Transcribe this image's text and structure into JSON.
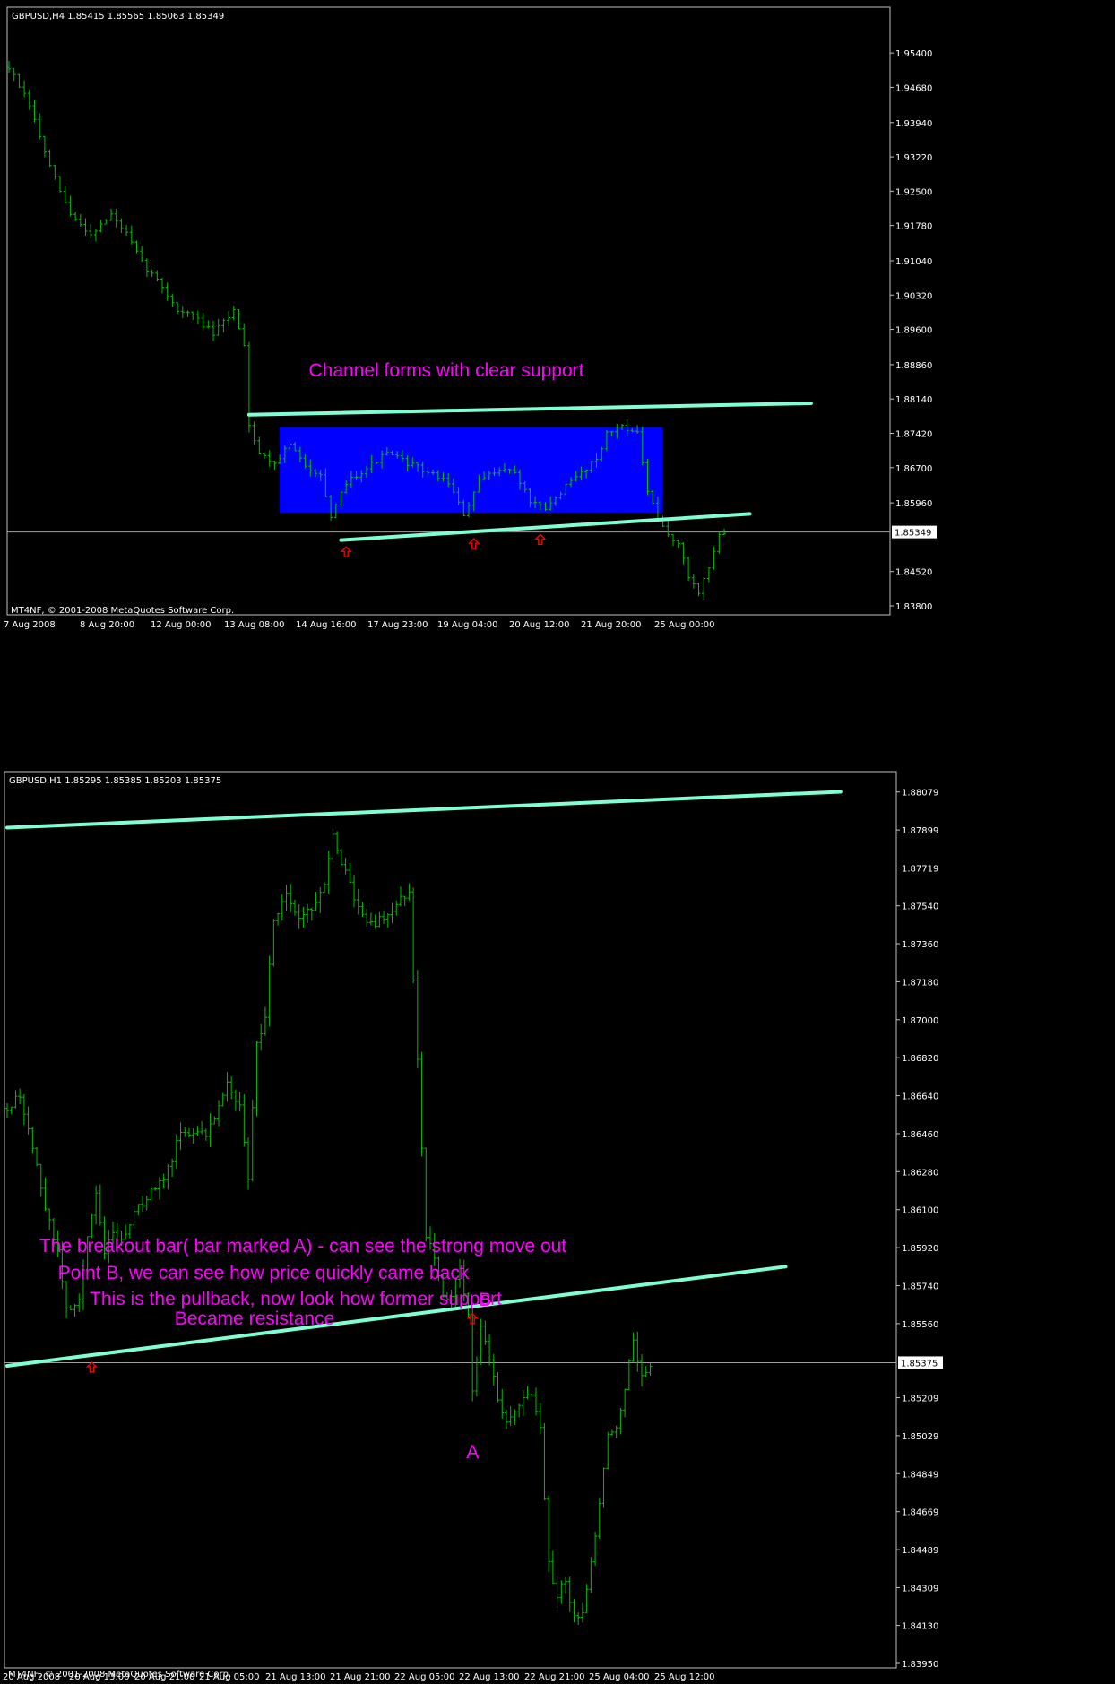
{
  "colors": {
    "background": "#000000",
    "frame": "#c0c0c0",
    "bars": "#00c000",
    "trendline": "#7fffd4",
    "channel_fill": "#0000ff",
    "annotation": "#ff00ff",
    "arrow": "#ff0000",
    "current_price_line": "#a0a0a0"
  },
  "chart_data": [
    {
      "type": "ohlc",
      "header": "GBPUSD,H4  1.85415 1.85565 1.85063 1.85349",
      "symbol": "GBPUSD",
      "timeframe": "H4",
      "copyright": "MT4NF, © 2001-2008 MetaQuotes Software Corp.",
      "y_ticks": [
        "1.95400",
        "1.94680",
        "1.93940",
        "1.93220",
        "1.92500",
        "1.91780",
        "1.91040",
        "1.90320",
        "1.89600",
        "1.88860",
        "1.88140",
        "1.87420",
        "1.86700",
        "1.85960",
        "1.84520",
        "1.83800"
      ],
      "y_tick_values": [
        1.954,
        1.9468,
        1.9394,
        1.9322,
        1.925,
        1.9178,
        1.9104,
        1.9032,
        1.896,
        1.8886,
        1.8814,
        1.8742,
        1.867,
        1.8596,
        1.8452,
        1.838
      ],
      "ylim": [
        1.838,
        1.9576
      ],
      "current_price_label": "1.85349",
      "current_price": 1.85349,
      "x_ticks": [
        "7 Aug 2008",
        "8 Aug 20:00",
        "12 Aug 00:00",
        "13 Aug 08:00",
        "14 Aug 16:00",
        "17 Aug 23:00",
        "19 Aug 04:00",
        "20 Aug 12:00",
        "21 Aug 20:00",
        "25 Aug 00:00"
      ],
      "annotations": [
        "Channel forms with clear support"
      ],
      "close_path": [
        {
          "i": 0,
          "p": 1.951
        },
        {
          "i": 4,
          "p": 1.943
        },
        {
          "i": 8,
          "p": 1.93
        },
        {
          "i": 12,
          "p": 1.92
        },
        {
          "i": 16,
          "p": 1.916
        },
        {
          "i": 20,
          "p": 1.92
        },
        {
          "i": 23,
          "p": 1.916
        },
        {
          "i": 26,
          "p": 1.91
        },
        {
          "i": 30,
          "p": 1.905
        },
        {
          "i": 33,
          "p": 1.9
        },
        {
          "i": 36,
          "p": 1.899
        },
        {
          "i": 40,
          "p": 1.895
        },
        {
          "i": 44,
          "p": 1.9
        },
        {
          "i": 46,
          "p": 1.893
        },
        {
          "i": 47,
          "p": 1.876
        },
        {
          "i": 49,
          "p": 1.87
        },
        {
          "i": 52,
          "p": 1.868
        },
        {
          "i": 55,
          "p": 1.872
        },
        {
          "i": 58,
          "p": 1.867
        },
        {
          "i": 61,
          "p": 1.866
        },
        {
          "i": 63,
          "p": 1.856
        },
        {
          "i": 66,
          "p": 1.864
        },
        {
          "i": 70,
          "p": 1.867
        },
        {
          "i": 74,
          "p": 1.87
        },
        {
          "i": 78,
          "p": 1.868
        },
        {
          "i": 82,
          "p": 1.866
        },
        {
          "i": 86,
          "p": 1.864
        },
        {
          "i": 89,
          "p": 1.857
        },
        {
          "i": 92,
          "p": 1.864
        },
        {
          "i": 96,
          "p": 1.867
        },
        {
          "i": 99,
          "p": 1.866
        },
        {
          "i": 102,
          "p": 1.86
        },
        {
          "i": 105,
          "p": 1.858
        },
        {
          "i": 108,
          "p": 1.862
        },
        {
          "i": 112,
          "p": 1.866
        },
        {
          "i": 115,
          "p": 1.869
        },
        {
          "i": 117,
          "p": 1.874
        },
        {
          "i": 120,
          "p": 1.876
        },
        {
          "i": 123,
          "p": 1.874
        },
        {
          "i": 125,
          "p": 1.862
        },
        {
          "i": 127,
          "p": 1.856
        },
        {
          "i": 129,
          "p": 1.853
        },
        {
          "i": 131,
          "p": 1.851
        },
        {
          "i": 133,
          "p": 1.844
        },
        {
          "i": 135,
          "p": 1.841
        },
        {
          "i": 137,
          "p": 1.846
        },
        {
          "i": 139,
          "p": 1.853
        },
        {
          "i": 140,
          "p": 1.853
        }
      ],
      "channel_box": {
        "from_bar": 53,
        "to_bar": 128,
        "top": 1.8755,
        "bottom": 1.8575
      },
      "trendlines": [
        {
          "from_bar": 47,
          "from_price": 1.8781,
          "to_bar": 157,
          "to_price": 1.8805
        },
        {
          "from_bar": 65,
          "from_price": 1.8518,
          "to_bar": 145,
          "to_price": 1.8573
        }
      ],
      "arrows_at_bars": [
        66,
        91,
        104
      ]
    },
    {
      "type": "ohlc",
      "header": "GBPUSD,H1  1.85295 1.85385 1.85203 1.85375",
      "symbol": "GBPUSD",
      "timeframe": "H1",
      "copyright": "MT4NF, © 2001-2008 MetaQuotes Software Corp.",
      "y_ticks": [
        "1.88079",
        "1.87899",
        "1.87719",
        "1.87540",
        "1.87360",
        "1.87180",
        "1.87000",
        "1.86820",
        "1.86640",
        "1.86460",
        "1.86280",
        "1.86100",
        "1.85920",
        "1.85740",
        "1.85560",
        "1.85209",
        "1.85029",
        "1.84849",
        "1.84669",
        "1.84489",
        "1.84309",
        "1.84130",
        "1.83950"
      ],
      "y_tick_values": [
        1.88079,
        1.87899,
        1.87719,
        1.8754,
        1.8736,
        1.8718,
        1.87,
        1.8682,
        1.8664,
        1.8646,
        1.8628,
        1.861,
        1.8592,
        1.8574,
        1.8556,
        1.85209,
        1.85029,
        1.84849,
        1.84669,
        1.84489,
        1.84309,
        1.8413,
        1.8395
      ],
      "ylim": [
        1.8395,
        1.8815
      ],
      "current_price_label": "1.85375",
      "current_price": 1.85375,
      "x_ticks": [
        "20 Aug 2008",
        "20 Aug 13:00",
        "20 Aug 21:00",
        "21 Aug 05:00",
        "21 Aug 13:00",
        "21 Aug 21:00",
        "22 Aug 05:00",
        "22 Aug 13:00",
        "22 Aug 21:00",
        "25 Aug 04:00",
        "25 Aug 12:00"
      ],
      "annotations": [
        "The breakout bar( bar marked A) - can see the strong move out",
        "Point B, we can see how price quickly came back",
        "This is the pullback, now look how former support",
        "Became resistance"
      ],
      "labels": [
        {
          "text": "A",
          "bar": 110,
          "price": 1.8505
        },
        {
          "text": "B",
          "bar": 113,
          "price": 1.8562
        }
      ],
      "close_path": [
        {
          "i": 0,
          "p": 1.8658
        },
        {
          "i": 3,
          "p": 1.8664
        },
        {
          "i": 6,
          "p": 1.864
        },
        {
          "i": 9,
          "p": 1.861
        },
        {
          "i": 12,
          "p": 1.859
        },
        {
          "i": 14,
          "p": 1.8562
        },
        {
          "i": 17,
          "p": 1.8568
        },
        {
          "i": 19,
          "p": 1.8596
        },
        {
          "i": 21,
          "p": 1.8618
        },
        {
          "i": 23,
          "p": 1.8588
        },
        {
          "i": 25,
          "p": 1.86
        },
        {
          "i": 27,
          "p": 1.8596
        },
        {
          "i": 30,
          "p": 1.8608
        },
        {
          "i": 33,
          "p": 1.8616
        },
        {
          "i": 36,
          "p": 1.8622
        },
        {
          "i": 39,
          "p": 1.8634
        },
        {
          "i": 41,
          "p": 1.8648
        },
        {
          "i": 44,
          "p": 1.8647
        },
        {
          "i": 47,
          "p": 1.8645
        },
        {
          "i": 49,
          "p": 1.8654
        },
        {
          "i": 52,
          "p": 1.8672
        },
        {
          "i": 55,
          "p": 1.8658
        },
        {
          "i": 57,
          "p": 1.8626
        },
        {
          "i": 59,
          "p": 1.8688
        },
        {
          "i": 61,
          "p": 1.8702
        },
        {
          "i": 63,
          "p": 1.8748
        },
        {
          "i": 66,
          "p": 1.876
        },
        {
          "i": 69,
          "p": 1.8748
        },
        {
          "i": 72,
          "p": 1.8752
        },
        {
          "i": 75,
          "p": 1.8766
        },
        {
          "i": 77,
          "p": 1.8786
        },
        {
          "i": 80,
          "p": 1.877
        },
        {
          "i": 83,
          "p": 1.8752
        },
        {
          "i": 86,
          "p": 1.8745
        },
        {
          "i": 89,
          "p": 1.8748
        },
        {
          "i": 92,
          "p": 1.8756
        },
        {
          "i": 95,
          "p": 1.876
        },
        {
          "i": 97,
          "p": 1.868
        },
        {
          "i": 99,
          "p": 1.8598
        },
        {
          "i": 101,
          "p": 1.8588
        },
        {
          "i": 103,
          "p": 1.8568
        },
        {
          "i": 105,
          "p": 1.857
        },
        {
          "i": 107,
          "p": 1.8582
        },
        {
          "i": 109,
          "p": 1.856
        },
        {
          "i": 110,
          "p": 1.8525
        },
        {
          "i": 112,
          "p": 1.8555
        },
        {
          "i": 114,
          "p": 1.854
        },
        {
          "i": 116,
          "p": 1.852
        },
        {
          "i": 118,
          "p": 1.851
        },
        {
          "i": 121,
          "p": 1.8518
        },
        {
          "i": 124,
          "p": 1.8522
        },
        {
          "i": 126,
          "p": 1.8505
        },
        {
          "i": 128,
          "p": 1.8442
        },
        {
          "i": 130,
          "p": 1.8428
        },
        {
          "i": 132,
          "p": 1.8434
        },
        {
          "i": 134,
          "p": 1.8416
        },
        {
          "i": 136,
          "p": 1.842
        },
        {
          "i": 138,
          "p": 1.8442
        },
        {
          "i": 140,
          "p": 1.847
        },
        {
          "i": 142,
          "p": 1.8502
        },
        {
          "i": 144,
          "p": 1.8508
        },
        {
          "i": 146,
          "p": 1.8525
        },
        {
          "i": 148,
          "p": 1.8548
        },
        {
          "i": 150,
          "p": 1.853
        },
        {
          "i": 152,
          "p": 1.8537
        }
      ],
      "trendlines": [
        {
          "from_bar": 0,
          "from_price": 1.8791,
          "to_bar": 197,
          "to_price": 1.8808
        },
        {
          "from_bar": 0,
          "from_price": 1.8536,
          "to_bar": 184,
          "to_price": 1.8583
        }
      ],
      "arrows_at_bars": [
        20,
        110
      ]
    }
  ]
}
